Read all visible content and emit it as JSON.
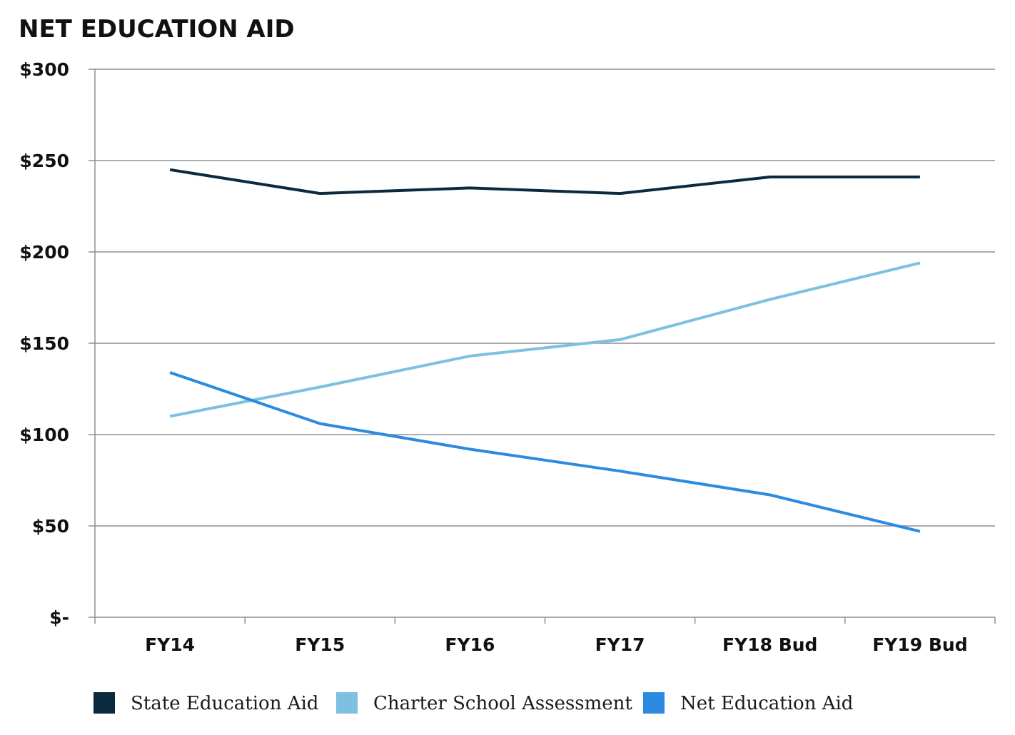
{
  "chart_data": {
    "type": "line",
    "title": "NET EDUCATION AID",
    "xlabel": "",
    "ylabel": "",
    "categories": [
      "FY14",
      "FY15",
      "FY16",
      "FY17",
      "FY18 Bud",
      "FY19 Bud"
    ],
    "yticks": [
      0,
      50,
      100,
      150,
      200,
      250,
      300
    ],
    "ytick_labels": [
      "$-",
      "$50",
      "$100",
      "$150",
      "$200",
      "$250",
      "$300"
    ],
    "ylim": [
      0,
      300
    ],
    "grid": true,
    "legend_position": "bottom",
    "series": [
      {
        "name": "State Education Aid",
        "color": "#0b2a3f",
        "values": [
          245,
          232,
          235,
          232,
          241,
          241
        ]
      },
      {
        "name": "Charter School Assessment",
        "color": "#7ec0e0",
        "values": [
          110,
          126,
          143,
          152,
          174,
          194
        ]
      },
      {
        "name": "Net Education Aid",
        "color": "#2b8be0",
        "values": [
          134,
          106,
          92,
          80,
          67,
          47
        ]
      }
    ]
  }
}
